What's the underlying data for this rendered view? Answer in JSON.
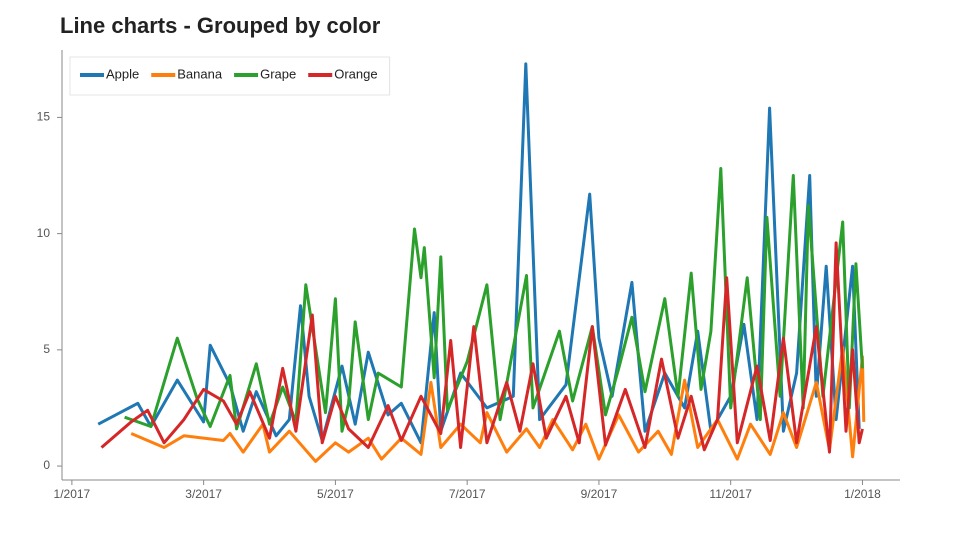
{
  "chart_data": {
    "type": "line",
    "title": "Line charts - Grouped by color",
    "xlim": [
      -0.15,
      12.57
    ],
    "ylim": [
      -0.6,
      17.9
    ],
    "xticks": [
      {
        "value": 0,
        "label": "1/2017"
      },
      {
        "value": 2,
        "label": "3/2017"
      },
      {
        "value": 4,
        "label": "5/2017"
      },
      {
        "value": 6,
        "label": "7/2017"
      },
      {
        "value": 8,
        "label": "9/2017"
      },
      {
        "value": 10,
        "label": "11/2017"
      },
      {
        "value": 12,
        "label": "1/2018"
      }
    ],
    "yticks": [
      0,
      5,
      10,
      15
    ],
    "grid": false,
    "legend": "top-left",
    "series": [
      {
        "name": "Apple",
        "color": "#1f77b4",
        "x": [
          0.4,
          1.0,
          1.2,
          1.6,
          2.0,
          2.1,
          2.4,
          2.6,
          2.8,
          3.1,
          3.3,
          3.47,
          3.6,
          3.8,
          4.1,
          4.3,
          4.5,
          4.8,
          5.0,
          5.3,
          5.5,
          5.6,
          5.9,
          6.3,
          6.7,
          6.89,
          7.1,
          7.5,
          7.86,
          8.0,
          8.2,
          8.5,
          8.7,
          9.0,
          9.3,
          9.5,
          9.7,
          10.0,
          10.2,
          10.4,
          10.59,
          10.8,
          11.0,
          11.2,
          11.3,
          11.45,
          11.6,
          11.85,
          11.95
        ],
        "values": [
          1.8,
          2.7,
          1.7,
          3.7,
          1.9,
          5.2,
          3.5,
          1.5,
          3.2,
          1.3,
          2.0,
          6.9,
          3.0,
          1.1,
          4.3,
          1.8,
          4.9,
          2.2,
          2.7,
          1.0,
          6.6,
          1.5,
          4.0,
          2.5,
          3.0,
          17.3,
          2.0,
          3.5,
          11.7,
          5.5,
          3.0,
          7.9,
          1.5,
          4.0,
          2.5,
          5.8,
          1.5,
          3.0,
          6.1,
          2.0,
          15.4,
          1.5,
          4.0,
          12.5,
          3.0,
          8.6,
          2.0,
          8.6,
          1.6
        ]
      },
      {
        "name": "Banana",
        "color": "#ff7f0e",
        "x": [
          0.9,
          1.4,
          1.7,
          2.3,
          2.4,
          2.6,
          2.9,
          3.0,
          3.3,
          3.7,
          4.0,
          4.2,
          4.5,
          4.7,
          5.0,
          5.3,
          5.45,
          5.6,
          5.9,
          6.2,
          6.3,
          6.6,
          6.9,
          7.1,
          7.3,
          7.6,
          7.8,
          8.0,
          8.3,
          8.6,
          8.9,
          9.1,
          9.3,
          9.5,
          9.8,
          10.1,
          10.3,
          10.6,
          10.8,
          11.0,
          11.3,
          11.5,
          11.7,
          11.85,
          12.0,
          12.02
        ],
        "values": [
          1.4,
          0.8,
          1.3,
          1.1,
          1.4,
          0.6,
          1.8,
          0.6,
          1.5,
          0.2,
          1.0,
          0.6,
          1.2,
          0.3,
          1.2,
          0.5,
          3.6,
          0.8,
          1.8,
          1.0,
          2.3,
          0.6,
          1.6,
          0.8,
          2.0,
          0.7,
          1.8,
          0.3,
          2.2,
          0.6,
          1.5,
          0.5,
          3.7,
          0.8,
          2.0,
          0.3,
          1.8,
          0.5,
          2.3,
          0.8,
          3.6,
          0.7,
          5.1,
          0.4,
          4.7,
          1.9
        ]
      },
      {
        "name": "Grape",
        "color": "#2ca02c",
        "x": [
          0.8,
          1.2,
          1.6,
          1.9,
          2.1,
          2.4,
          2.5,
          2.8,
          3.0,
          3.2,
          3.4,
          3.55,
          3.85,
          4.0,
          4.1,
          4.2,
          4.3,
          4.5,
          4.65,
          5.0,
          5.2,
          5.3,
          5.35,
          5.5,
          5.6,
          5.7,
          6.0,
          6.3,
          6.5,
          6.9,
          7.0,
          7.4,
          7.6,
          7.9,
          8.1,
          8.3,
          8.5,
          8.7,
          9.0,
          9.2,
          9.4,
          9.55,
          9.7,
          9.85,
          10.0,
          10.25,
          10.45,
          10.55,
          10.75,
          10.95,
          11.1,
          11.18,
          11.4,
          11.7,
          11.8,
          11.9,
          12.0
        ],
        "values": [
          2.1,
          1.7,
          5.5,
          2.9,
          1.7,
          3.9,
          1.6,
          4.4,
          1.8,
          3.4,
          1.9,
          7.8,
          2.3,
          7.2,
          1.5,
          2.7,
          6.2,
          2.0,
          4.0,
          3.4,
          10.2,
          8.1,
          9.4,
          3.8,
          9.0,
          2.4,
          4.5,
          7.8,
          2.0,
          8.2,
          2.5,
          5.8,
          2.8,
          6.0,
          2.2,
          4.2,
          6.4,
          3.2,
          7.2,
          3.0,
          8.3,
          3.3,
          5.8,
          12.8,
          2.5,
          8.1,
          2.0,
          10.7,
          3.0,
          12.5,
          2.5,
          11.2,
          3.0,
          10.5,
          2.5,
          8.7,
          4.2
        ]
      },
      {
        "name": "Orange",
        "color": "#d62728",
        "x": [
          0.45,
          0.9,
          1.15,
          1.4,
          1.7,
          2.0,
          2.3,
          2.5,
          2.7,
          3.0,
          3.2,
          3.4,
          3.65,
          3.8,
          4.0,
          4.2,
          4.5,
          4.8,
          5.0,
          5.3,
          5.6,
          5.75,
          5.9,
          6.1,
          6.3,
          6.6,
          6.8,
          7.0,
          7.2,
          7.5,
          7.7,
          7.9,
          8.1,
          8.4,
          8.7,
          8.95,
          9.2,
          9.4,
          9.6,
          9.8,
          9.94,
          10.1,
          10.4,
          10.6,
          10.8,
          11.0,
          11.3,
          11.5,
          11.6,
          11.75,
          11.85,
          11.95,
          12.0
        ],
        "values": [
          0.8,
          1.9,
          2.4,
          1.0,
          2.0,
          3.3,
          2.8,
          1.8,
          3.2,
          1.2,
          4.2,
          1.5,
          6.5,
          1.0,
          3.0,
          1.6,
          0.8,
          2.6,
          1.1,
          3.0,
          1.4,
          5.4,
          0.8,
          6.0,
          1.0,
          3.6,
          1.5,
          4.4,
          1.2,
          3.0,
          1.0,
          6.0,
          0.9,
          3.3,
          0.8,
          4.6,
          1.2,
          3.0,
          0.7,
          2.0,
          8.1,
          1.0,
          4.3,
          1.1,
          5.5,
          1.0,
          6.0,
          0.6,
          9.6,
          1.5,
          5.0,
          1.0,
          1.6
        ]
      }
    ]
  }
}
